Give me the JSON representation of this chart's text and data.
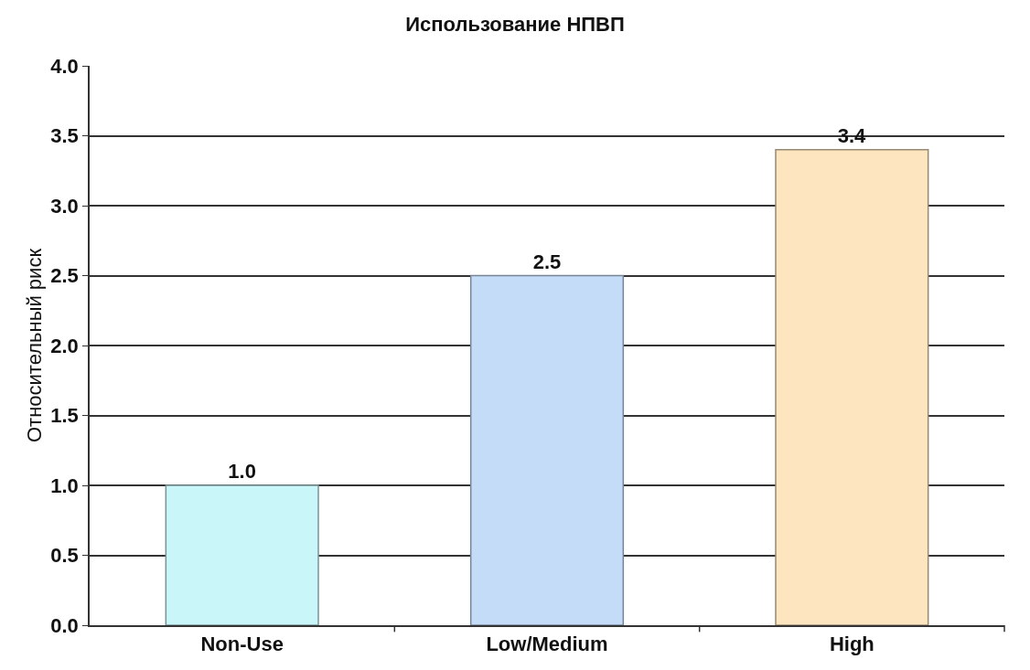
{
  "chart_data": {
    "type": "bar",
    "title": "Использование НПВП",
    "ylabel": "Относительный риск",
    "categories": [
      "Non-Use",
      "Low/Medium",
      "High"
    ],
    "values": [
      1.0,
      2.5,
      3.4
    ],
    "value_labels": [
      "1.0",
      "2.5",
      "3.4"
    ],
    "colors": [
      "#c9f6f8",
      "#c4dcf8",
      "#fde5bf"
    ],
    "ylim": [
      0,
      4
    ],
    "yticks": [
      {
        "value": 0,
        "label": "0.0"
      },
      {
        "value": 0.5,
        "label": "0.5"
      },
      {
        "value": 1,
        "label": "1.0"
      },
      {
        "value": 1.5,
        "label": "1.5"
      },
      {
        "value": 2,
        "label": "2.0"
      },
      {
        "value": 2.5,
        "label": "2.5"
      },
      {
        "value": 3,
        "label": "3.0"
      },
      {
        "value": 3.5,
        "label": "3.5"
      },
      {
        "value": 4,
        "label": "4.0"
      }
    ],
    "grid": "y"
  }
}
